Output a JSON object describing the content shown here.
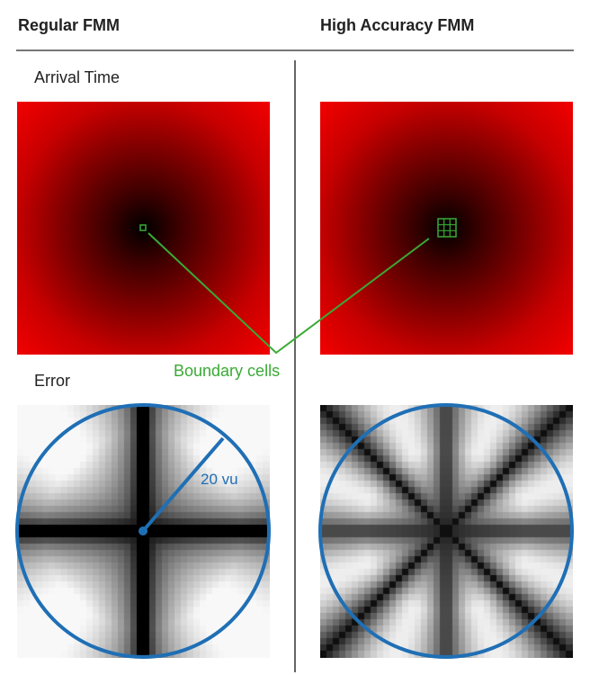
{
  "columns": {
    "left_title": "Regular FMM",
    "right_title": "High Accuracy FMM"
  },
  "rows": {
    "arrival_label": "Arrival Time",
    "error_label": "Error"
  },
  "annotations": {
    "boundary_cells_label": "Boundary cells",
    "radius_label": "20 vu"
  },
  "colors": {
    "boundary_green": "#3aaa35",
    "circle_blue": "#1f6fb5",
    "arrival_dark": "#000000",
    "arrival_bright": "#ff0000"
  }
}
